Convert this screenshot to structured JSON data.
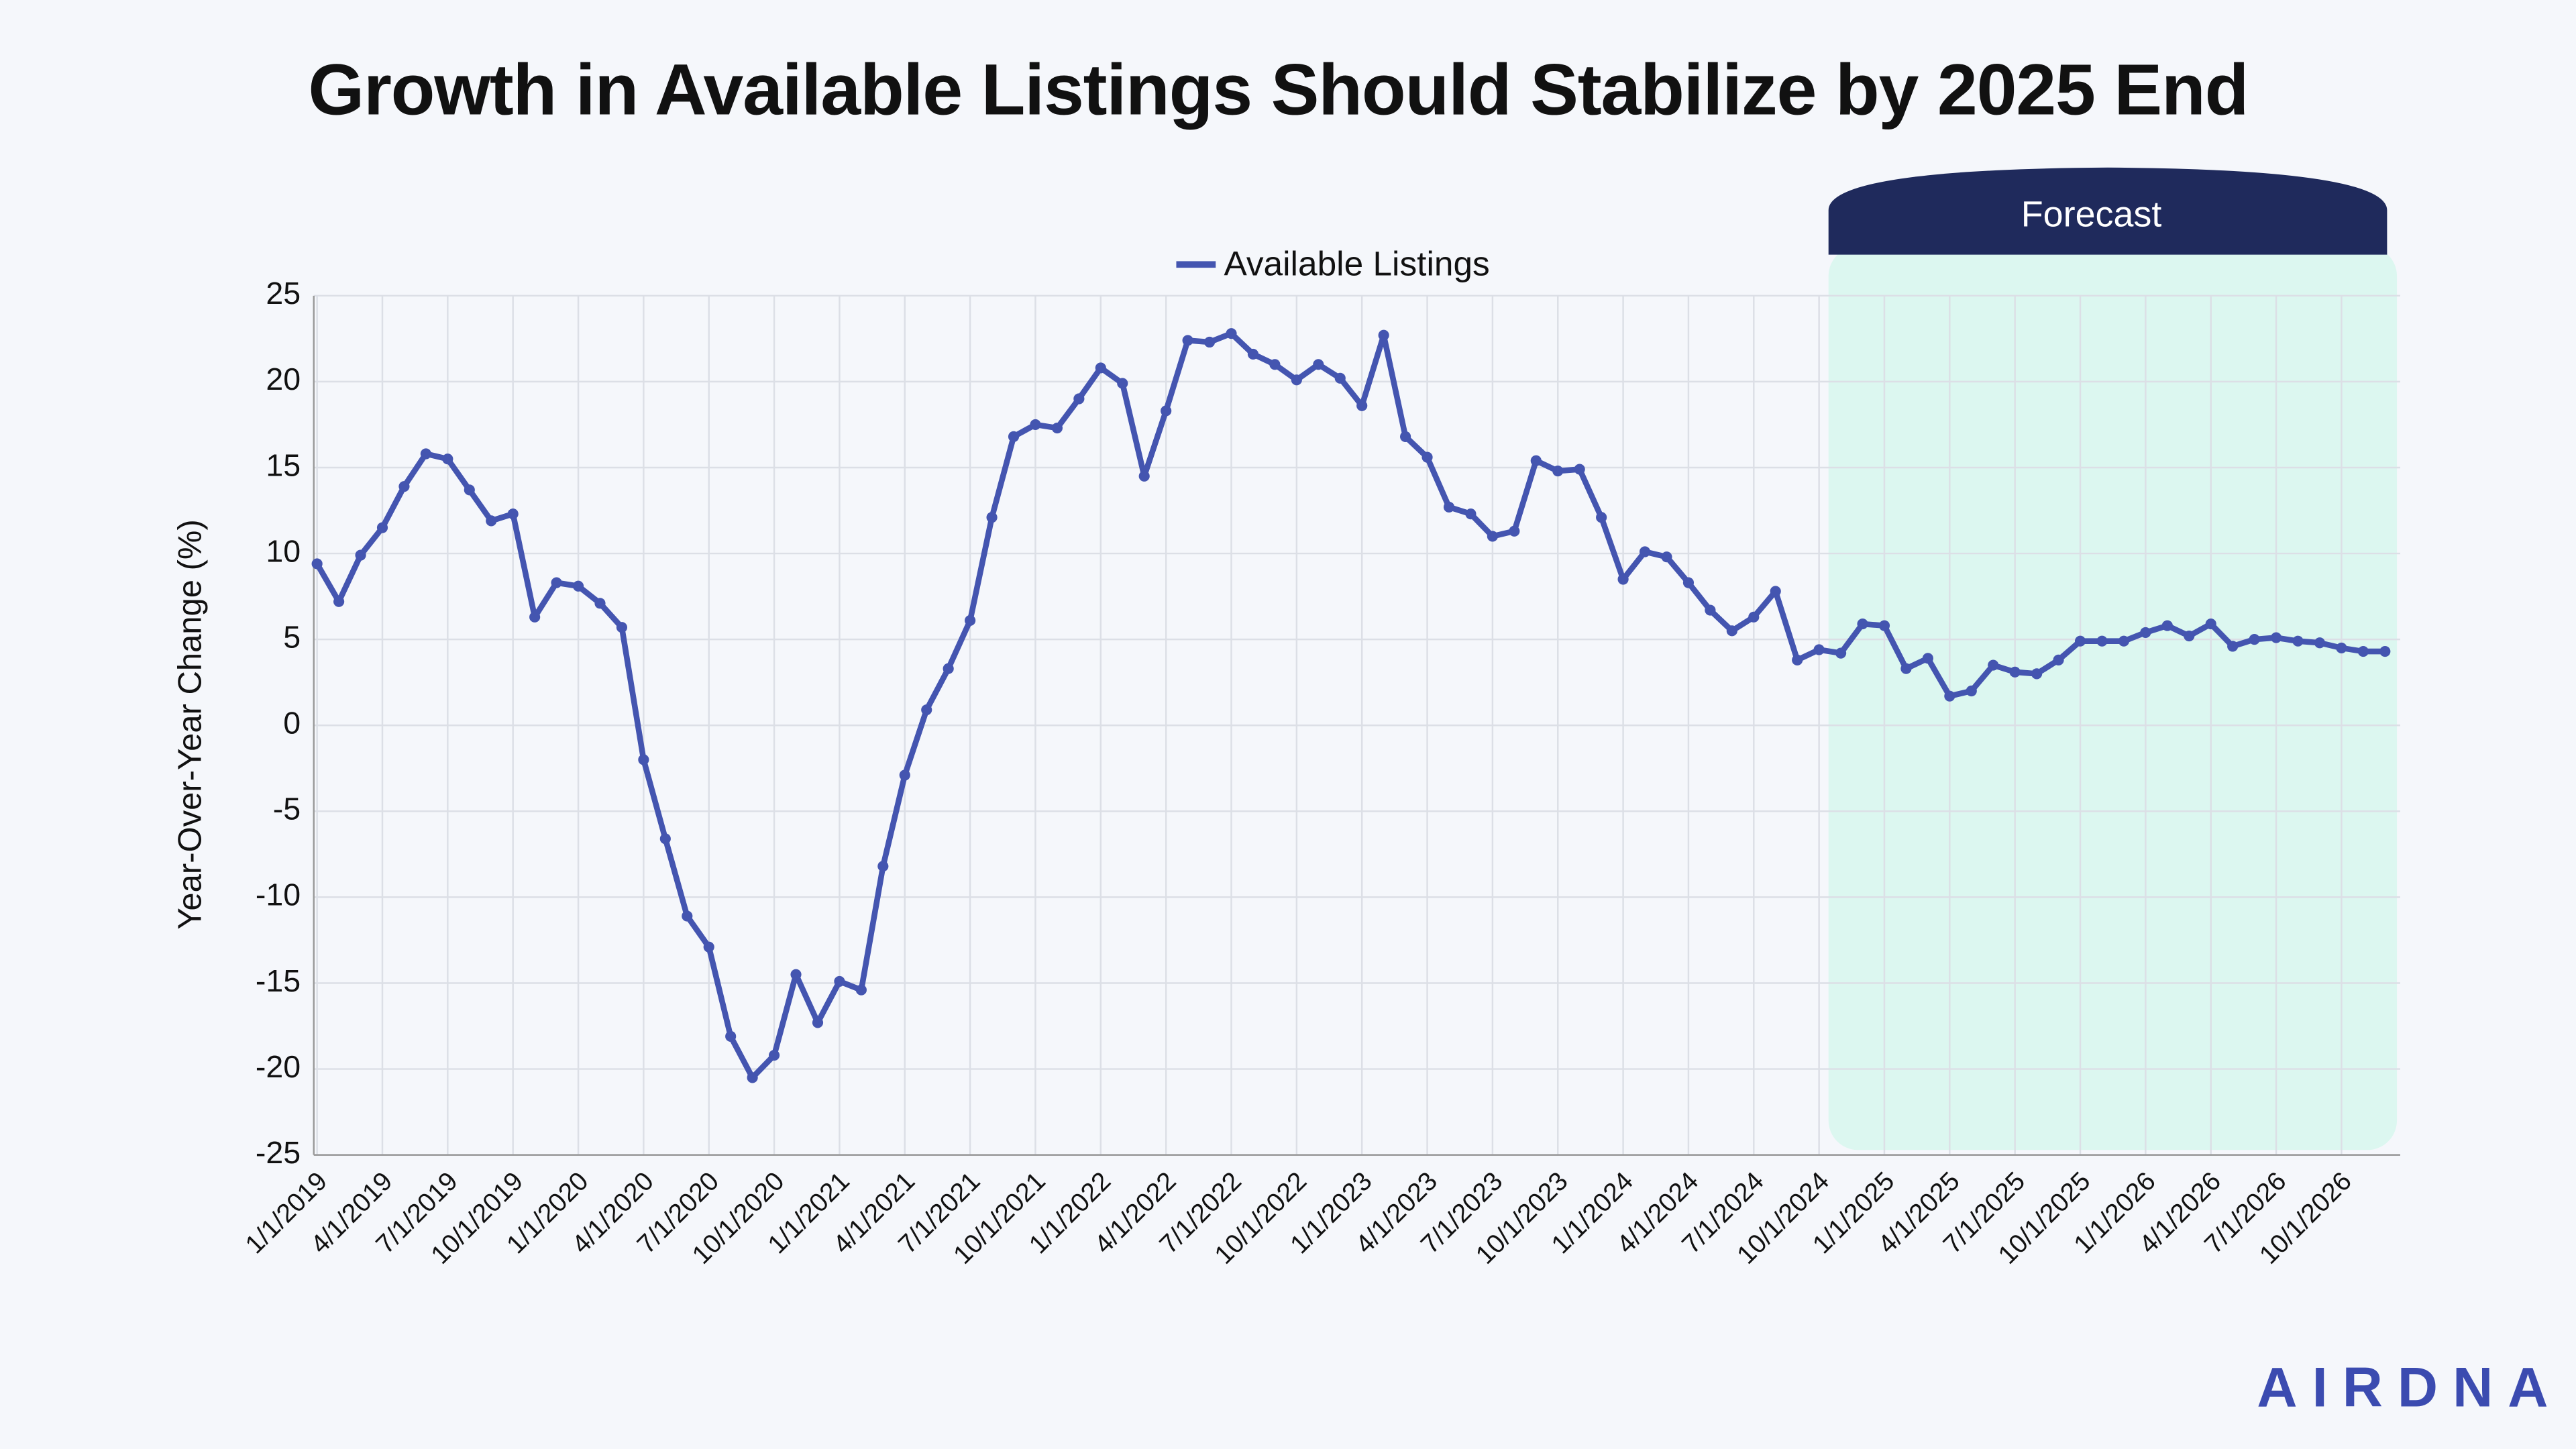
{
  "chart_data": {
    "type": "line",
    "title": "Growth in Available Listings Should Stabilize by 2025 End",
    "y_label": "Year-Over-Year Change (%)",
    "forecast_label": "Forecast",
    "logo": "AIRDNA",
    "categories": [
      "1/1/2019",
      null,
      null,
      "4/1/2019",
      null,
      null,
      "7/1/2019",
      null,
      null,
      "10/1/2019",
      null,
      null,
      "1/1/2020",
      null,
      null,
      "4/1/2020",
      null,
      null,
      "7/1/2020",
      null,
      null,
      "10/1/2020",
      null,
      null,
      "1/1/2021",
      null,
      null,
      "4/1/2021",
      null,
      null,
      "7/1/2021",
      null,
      null,
      "10/1/2021",
      null,
      null,
      "1/1/2022",
      null,
      null,
      "4/1/2022",
      null,
      null,
      "7/1/2022",
      null,
      null,
      "10/1/2022",
      null,
      null,
      "1/1/2023",
      null,
      null,
      "4/1/2023",
      null,
      null,
      "7/1/2023",
      null,
      null,
      "10/1/2023",
      null,
      null,
      "1/1/2024",
      null,
      null,
      "4/1/2024",
      null,
      null,
      "7/1/2024",
      null,
      null,
      "10/1/2024",
      null,
      null,
      "1/1/2025",
      null,
      null,
      "4/1/2025",
      null,
      null,
      "7/1/2025",
      null,
      null,
      "10/1/2025",
      null,
      null,
      "1/1/2026",
      null,
      null,
      "4/1/2026",
      null,
      null,
      "7/1/2026",
      null,
      null,
      "10/1/2026",
      null,
      null
    ],
    "series": [
      {
        "name": "Available Listings",
        "color": "#4455b0",
        "values": [
          9.4,
          7.2,
          9.9,
          11.5,
          13.9,
          15.8,
          15.5,
          13.7,
          11.9,
          12.3,
          6.3,
          8.3,
          8.1,
          7.1,
          5.7,
          -2.0,
          -6.6,
          -11.1,
          -12.9,
          -18.1,
          -20.5,
          -19.2,
          -14.5,
          -17.3,
          -14.9,
          -15.4,
          -8.2,
          -2.9,
          0.9,
          3.3,
          6.1,
          12.1,
          16.8,
          17.5,
          17.3,
          19.0,
          20.8,
          19.9,
          14.5,
          18.3,
          22.4,
          22.3,
          22.8,
          21.6,
          21.0,
          20.1,
          21.0,
          20.2,
          18.6,
          22.7,
          16.8,
          15.6,
          12.7,
          12.3,
          11.0,
          11.3,
          15.4,
          14.8,
          14.9,
          12.1,
          8.5,
          10.1,
          9.8,
          8.3,
          6.7,
          5.5,
          6.3,
          7.8,
          3.8,
          4.4,
          4.2,
          5.9,
          5.8,
          3.3,
          3.9,
          1.7,
          2.0,
          3.5,
          3.1,
          3.0,
          3.8,
          4.9,
          4.9,
          4.9,
          5.4,
          5.8,
          5.2,
          5.9,
          4.6,
          5.0,
          5.1,
          4.9,
          4.8,
          4.5,
          4.3,
          4.3
        ]
      }
    ],
    "ylim": [
      -25,
      25
    ],
    "yticks": [
      -25,
      -20,
      -15,
      -10,
      -5,
      0,
      5,
      10,
      15,
      20,
      25
    ],
    "grid": true,
    "legend": "top"
  }
}
